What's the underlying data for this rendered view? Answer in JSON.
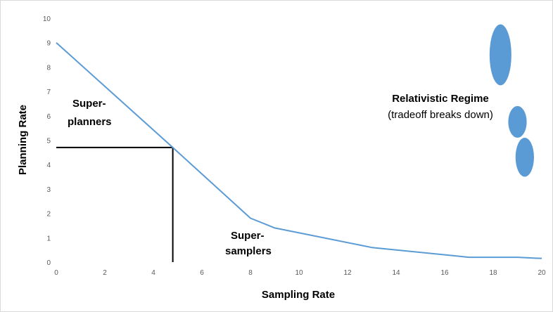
{
  "chart_data": {
    "type": "line",
    "xlabel": "Sampling Rate",
    "ylabel": "Planning Rate",
    "xlim": [
      0,
      20
    ],
    "ylim": [
      0,
      10
    ],
    "x_ticks": [
      0,
      2,
      4,
      6,
      8,
      10,
      12,
      14,
      16,
      18,
      20
    ],
    "y_ticks": [
      0,
      1,
      2,
      3,
      4,
      5,
      6,
      7,
      8,
      9,
      10
    ],
    "grid": false,
    "series": [
      {
        "color": "#5b9bd5",
        "x": [
          0,
          4.8,
          8,
          9,
          13,
          17,
          19,
          20
        ],
        "y": [
          9,
          4.7,
          1.8,
          1.4,
          0.6,
          0.2,
          0.2,
          0.15
        ]
      }
    ],
    "reference_lines": {
      "color": "#000000",
      "x": 4.8,
      "y": 4.7
    },
    "annotations": {
      "super_planners_line1": "Super-",
      "super_planners_line2": "planners",
      "super_samplers_line1": "Super-",
      "super_samplers_line2": "samplers",
      "relativistic_title": "Relativistic Regime",
      "relativistic_subtitle": "(tradeoff breaks down)"
    },
    "blobs": [
      {
        "cx": 18.3,
        "cy": 8.5,
        "rx": 0.45,
        "ry": 1.25
      },
      {
        "cx": 19.0,
        "cy": 5.75,
        "rx": 0.38,
        "ry": 0.65
      },
      {
        "cx": 19.3,
        "cy": 4.3,
        "rx": 0.38,
        "ry": 0.8
      }
    ],
    "blob_color": "#5b9bd5"
  }
}
